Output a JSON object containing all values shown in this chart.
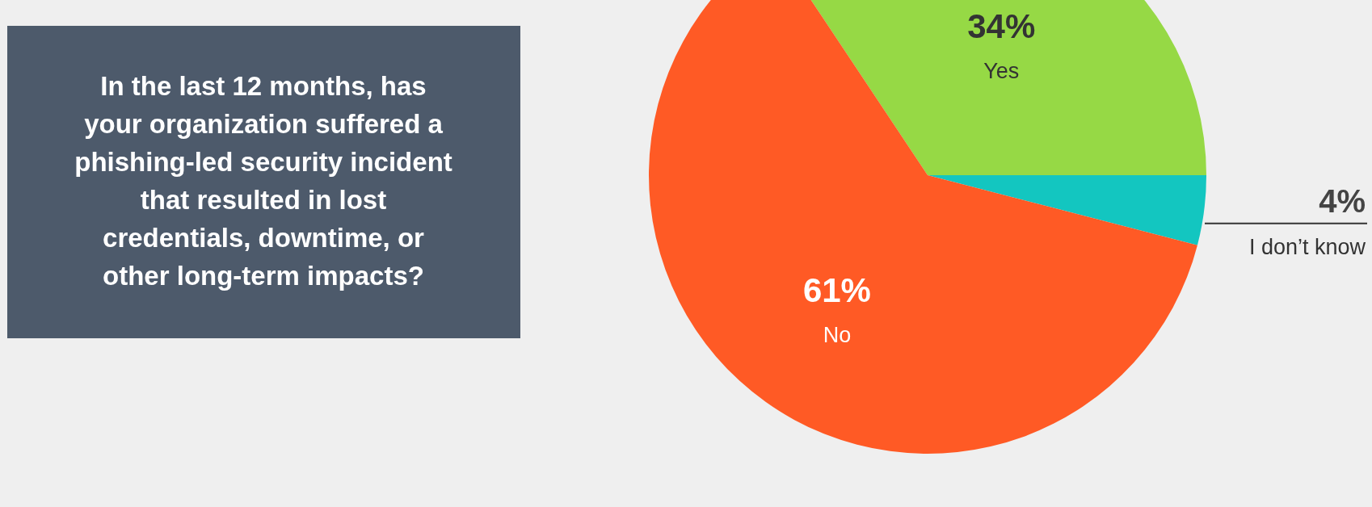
{
  "chart_data": {
    "type": "pie",
    "title": "In the last 12 months, has your organization suffered a phishing-led security incident that resulted in lost credentials, downtime, or other long-term impacts?",
    "categories": [
      "Yes",
      "I don’t know",
      "No"
    ],
    "values": [
      34,
      4,
      61
    ],
    "colors": [
      "#96d945",
      "#13c6c0",
      "#ff5a25"
    ],
    "value_labels": [
      "34%",
      "4%",
      "61%"
    ],
    "legend": false
  }
}
